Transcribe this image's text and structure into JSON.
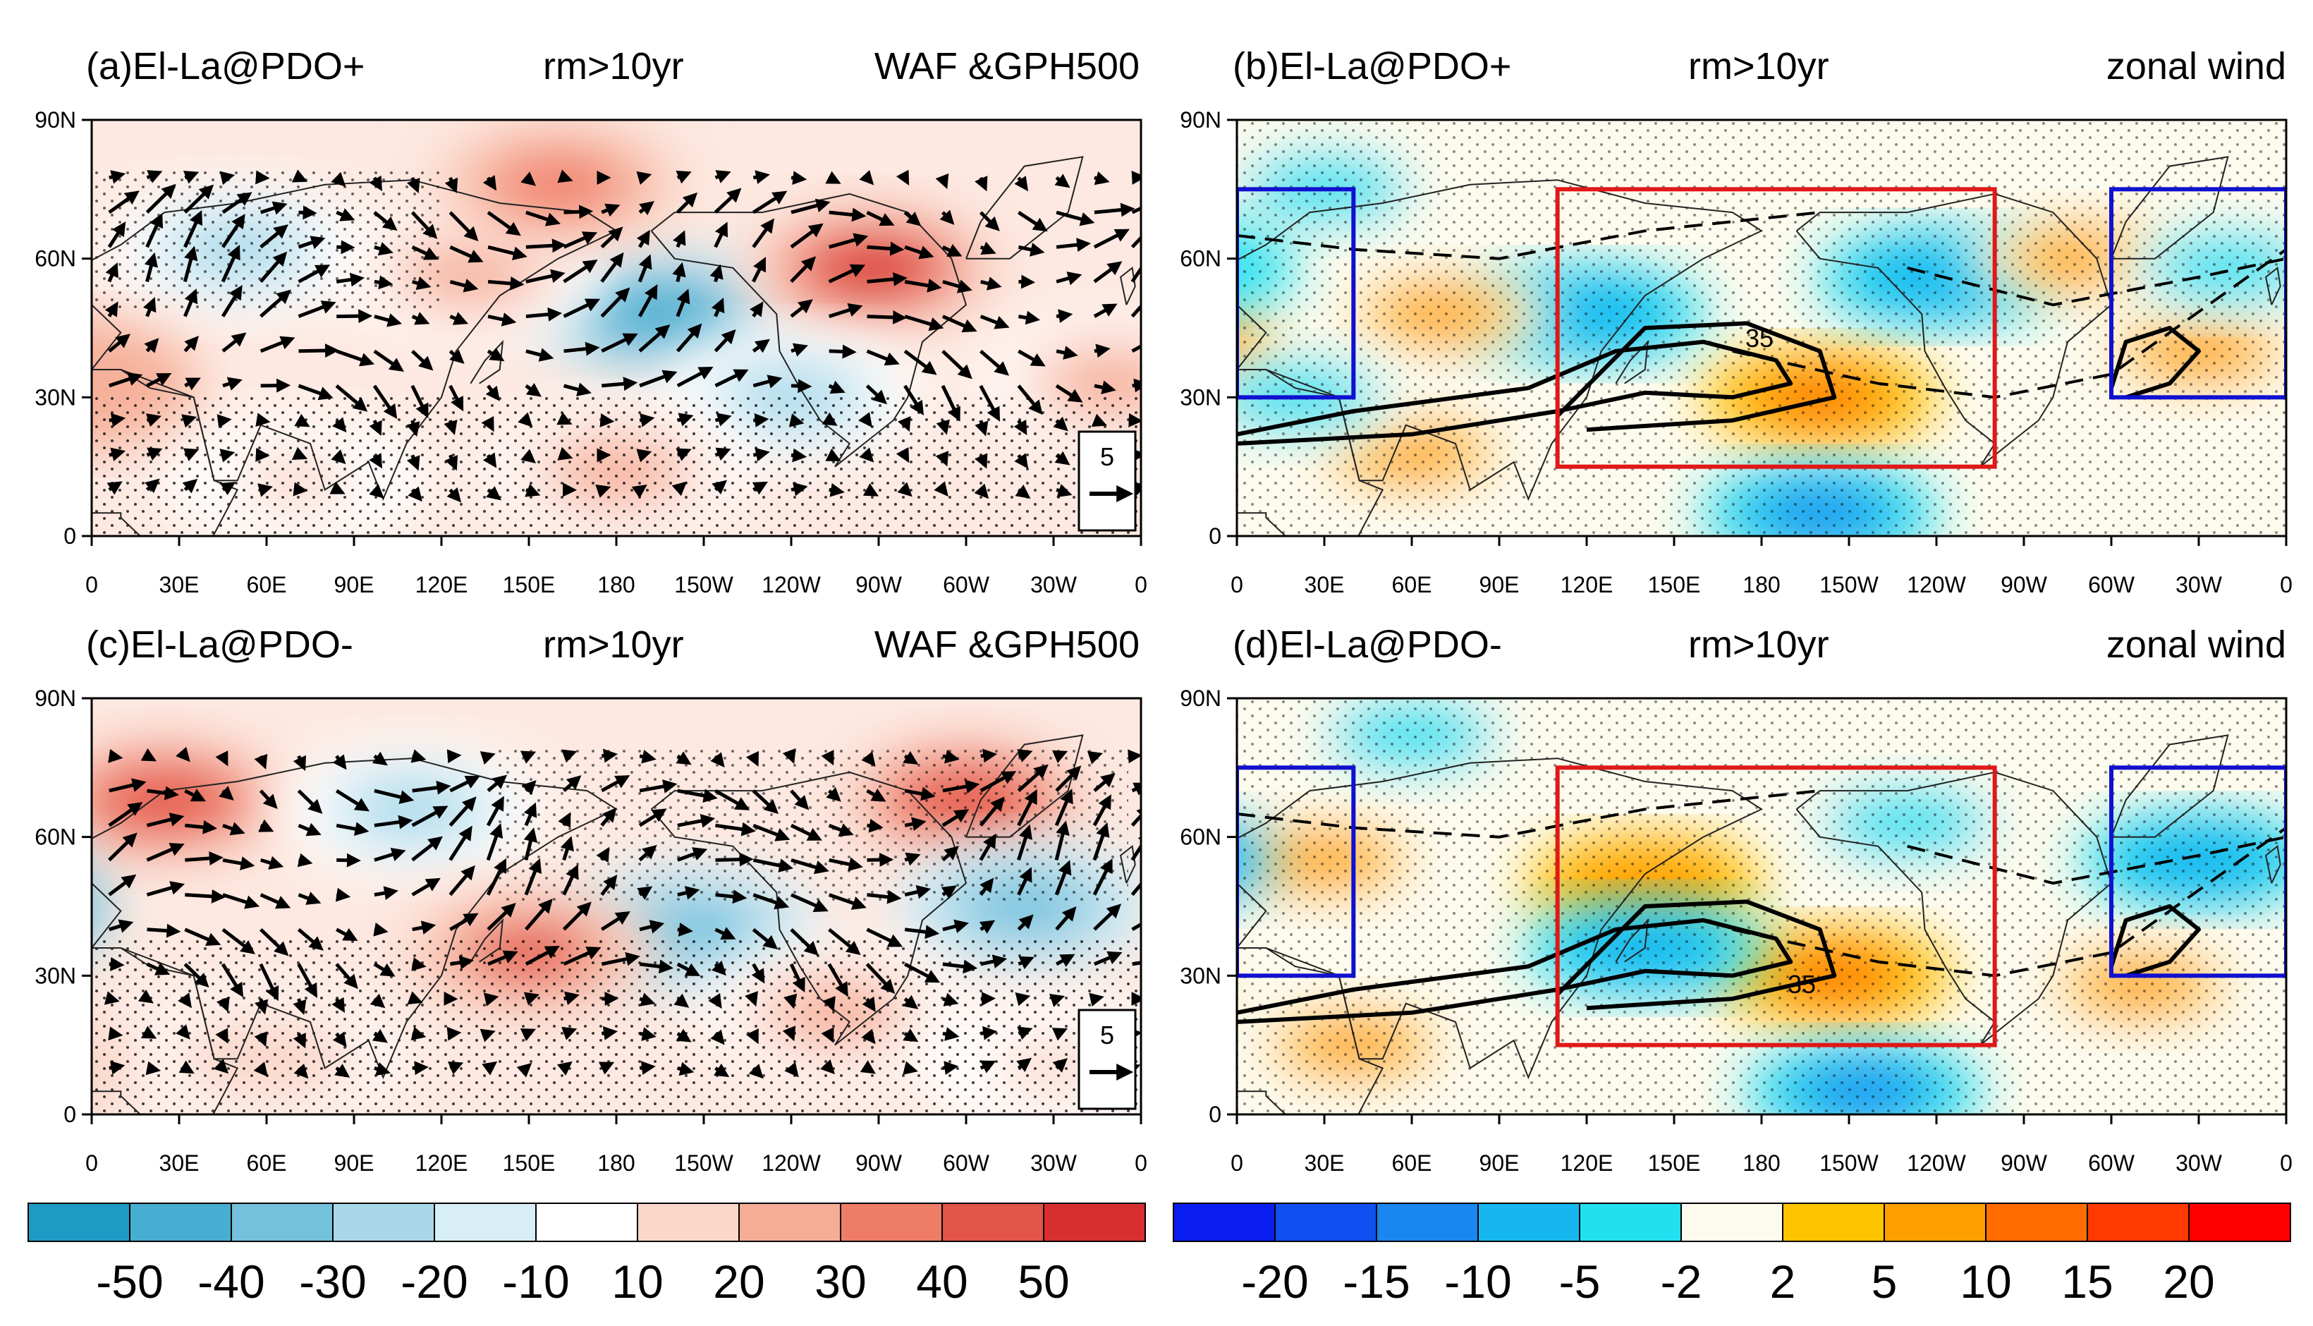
{
  "panels": [
    {
      "id": "a",
      "label": "(a)El-La@PDO+",
      "center_title": "rm>10yr",
      "right_title": "WAF &GPH500",
      "variable": "gph",
      "vector_ref": "5",
      "anomaly_centers": [
        {
          "lon": 50,
          "lat": 62,
          "value": -30
        },
        {
          "lon": 195,
          "lat": 48,
          "value": -50
        },
        {
          "lon": 268,
          "lat": 58,
          "value": 50
        },
        {
          "lon": 130,
          "lat": 57,
          "value": 20
        },
        {
          "lon": 160,
          "lat": 76,
          "value": 30
        },
        {
          "lon": 240,
          "lat": 30,
          "value": -30
        },
        {
          "lon": 70,
          "lat": 12,
          "value": 10
        },
        {
          "lon": 180,
          "lat": 14,
          "value": 20
        },
        {
          "lon": 350,
          "lat": 33,
          "value": 20
        }
      ]
    },
    {
      "id": "b",
      "label": "(b)El-La@PDO+",
      "center_title": "rm>10yr",
      "right_title": "zonal wind",
      "variable": "u",
      "jet_contour_label": "35",
      "boxes": [
        {
          "color": "#1010d0",
          "lon": [
            0,
            40
          ],
          "lat": [
            30,
            75
          ]
        },
        {
          "color": "#1010d0",
          "lon": [
            300,
            360
          ],
          "lat": [
            30,
            75
          ]
        },
        {
          "color": "#e01818",
          "lon": [
            110,
            260
          ],
          "lat": [
            15,
            75
          ]
        }
      ],
      "anomaly_centers": [
        {
          "lon": 200,
          "lat": 30,
          "value": 12
        },
        {
          "lon": 120,
          "lat": 48,
          "value": -10
        },
        {
          "lon": 200,
          "lat": 5,
          "value": -12
        },
        {
          "lon": 70,
          "lat": 48,
          "value": 5
        },
        {
          "lon": 60,
          "lat": 18,
          "value": 5
        },
        {
          "lon": 240,
          "lat": 56,
          "value": -10
        },
        {
          "lon": 290,
          "lat": 60,
          "value": 5
        },
        {
          "lon": 30,
          "lat": 75,
          "value": -5
        },
        {
          "lon": 330,
          "lat": 40,
          "value": 5
        },
        {
          "lon": 340,
          "lat": 58,
          "value": -5
        },
        {
          "lon": 20,
          "lat": 30,
          "value": -5
        }
      ]
    },
    {
      "id": "c",
      "label": "(c)El-La@PDO-",
      "center_title": "rm>10yr",
      "right_title": "WAF &GPH500",
      "variable": "gph",
      "vector_ref": "5",
      "anomaly_centers": [
        {
          "lon": 25,
          "lat": 68,
          "value": 45
        },
        {
          "lon": 110,
          "lat": 66,
          "value": -30
        },
        {
          "lon": 205,
          "lat": 40,
          "value": -40
        },
        {
          "lon": 150,
          "lat": 35,
          "value": 40
        },
        {
          "lon": 300,
          "lat": 68,
          "value": 45
        },
        {
          "lon": 320,
          "lat": 45,
          "value": -40
        },
        {
          "lon": 255,
          "lat": 22,
          "value": 20
        },
        {
          "lon": 60,
          "lat": 12,
          "value": 15
        },
        {
          "lon": 330,
          "lat": 10,
          "value": 10
        }
      ]
    },
    {
      "id": "d",
      "label": "(d)El-La@PDO-",
      "center_title": "rm>10yr",
      "right_title": "zonal wind",
      "variable": "u",
      "jet_contour_label": "35",
      "boxes": [
        {
          "color": "#1010d0",
          "lon": [
            0,
            40
          ],
          "lat": [
            30,
            75
          ]
        },
        {
          "color": "#1010d0",
          "lon": [
            300,
            360
          ],
          "lat": [
            30,
            75
          ]
        },
        {
          "color": "#e01818",
          "lon": [
            110,
            260
          ],
          "lat": [
            15,
            75
          ]
        }
      ],
      "anomaly_centers": [
        {
          "lon": 205,
          "lat": 30,
          "value": 14
        },
        {
          "lon": 140,
          "lat": 50,
          "value": 8
        },
        {
          "lon": 140,
          "lat": 36,
          "value": -8
        },
        {
          "lon": 215,
          "lat": 5,
          "value": -12
        },
        {
          "lon": 30,
          "lat": 55,
          "value": 5
        },
        {
          "lon": 40,
          "lat": 15,
          "value": 5
        },
        {
          "lon": 230,
          "lat": 63,
          "value": -5
        },
        {
          "lon": 330,
          "lat": 55,
          "value": -8
        },
        {
          "lon": 310,
          "lat": 28,
          "value": 5
        },
        {
          "lon": 60,
          "lat": 82,
          "value": -5
        }
      ]
    }
  ],
  "axes": {
    "x_ticks": [
      "0",
      "30E",
      "60E",
      "90E",
      "120E",
      "150E",
      "180",
      "150W",
      "120W",
      "90W",
      "60W",
      "30W",
      "0"
    ],
    "y_ticks": [
      "0",
      "30N",
      "60N",
      "90N"
    ],
    "lon_range": [
      0,
      360
    ],
    "lat_range": [
      0,
      90
    ]
  },
  "colorbars": [
    {
      "name": "gph500",
      "labels": [
        "-50",
        "-40",
        "-30",
        "-20",
        "-10",
        "10",
        "20",
        "30",
        "40",
        "50"
      ],
      "colors": [
        "#1e9bc5",
        "#46aed0",
        "#73c1dc",
        "#a8d8ea",
        "#d8eef6",
        "#ffffff",
        "#fbd7c9",
        "#f6ad96",
        "#ef7c67",
        "#e35449",
        "#d72f2f"
      ]
    },
    {
      "name": "zonal_wind",
      "labels": [
        "-20",
        "-15",
        "-10",
        "-5",
        "-2",
        "2",
        "5",
        "10",
        "15",
        "20"
      ],
      "colors": [
        "#0a1ef0",
        "#1050f0",
        "#1a86f0",
        "#16b6f0",
        "#22e0f0",
        "#fdfbee",
        "#ffc400",
        "#ff9f00",
        "#ff6c00",
        "#ff3a00",
        "#ff0000"
      ]
    }
  ]
}
